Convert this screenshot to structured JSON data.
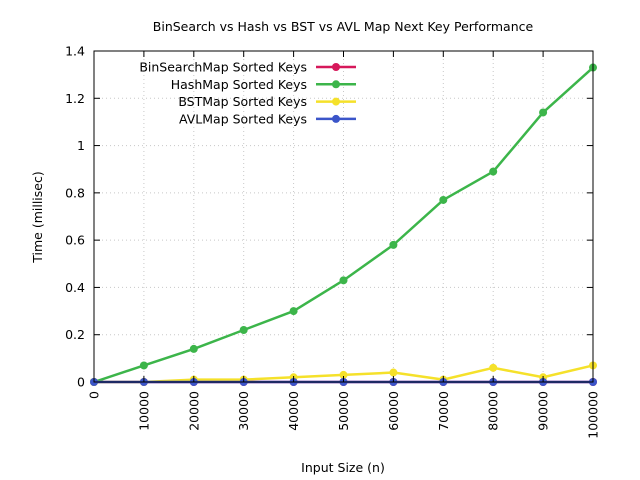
{
  "chart_data": {
    "type": "line",
    "title": "BinSearch vs Hash vs BST vs AVL Map Next Key Performance",
    "xlabel": "Input Size (n)",
    "ylabel": "Time (millisec)",
    "xlim": [
      0,
      100000
    ],
    "ylim": [
      0,
      1.4
    ],
    "x": [
      0,
      10000,
      20000,
      30000,
      40000,
      50000,
      60000,
      70000,
      80000,
      90000,
      100000
    ],
    "x_tick_labels": [
      "0",
      "10000",
      "20000",
      "30000",
      "40000",
      "50000",
      "60000",
      "70000",
      "80000",
      "90000",
      "100000"
    ],
    "y_ticks": [
      0,
      0.2,
      0.4,
      0.6,
      0.8,
      1,
      1.2,
      1.4
    ],
    "y_tick_labels": [
      "0",
      "0.2",
      "0.4",
      "0.6",
      "0.8",
      "1",
      "1.2",
      "1.4"
    ],
    "grid": true,
    "legend_position": "top-left",
    "series": [
      {
        "name": "BinSearchMap Sorted Keys",
        "color": "#d6185a",
        "values": [
          0,
          0,
          0,
          0,
          0,
          0,
          0,
          0,
          0,
          0,
          0
        ]
      },
      {
        "name": "HashMap Sorted Keys",
        "color": "#3cb54a",
        "values": [
          0,
          0.07,
          0.14,
          0.22,
          0.3,
          0.43,
          0.58,
          0.77,
          0.89,
          1.14,
          1.33
        ]
      },
      {
        "name": "BSTMap Sorted Keys",
        "color": "#f5e12a",
        "values": [
          0,
          0,
          0.01,
          0.01,
          0.02,
          0.03,
          0.04,
          0.01,
          0.06,
          0.02,
          0.07
        ]
      },
      {
        "name": "AVLMap Sorted Keys",
        "color": "#3b55c9",
        "values": [
          0,
          0,
          0,
          0,
          0,
          0,
          0,
          0,
          0,
          0,
          0
        ]
      }
    ]
  }
}
